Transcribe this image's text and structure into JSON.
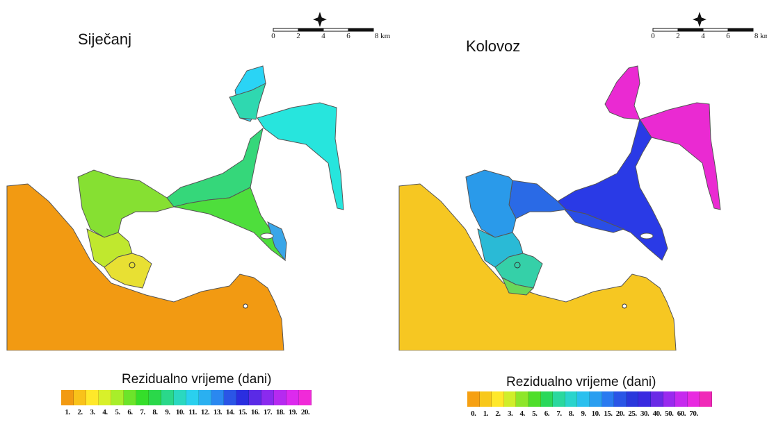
{
  "maps": [
    {
      "id": "left",
      "title": "Siječanj",
      "scale_labels": [
        "0",
        "2",
        "4",
        "6",
        "8 km"
      ],
      "land_color": "#f29a12",
      "zone_colors": [
        "#2ad4f5",
        "#27e5dd",
        "#2fd8b0",
        "#35d77a",
        "#4ede3c",
        "#86e032",
        "#c0e82e",
        "#e8e033",
        "#3aa6e8",
        "#2a8ee0"
      ],
      "legend": {
        "title": "Rezidualno vrijeme (dani)",
        "colors": [
          "#f29a12",
          "#f9c21a",
          "#ffe82a",
          "#d8f02a",
          "#a8ee2a",
          "#6ce42a",
          "#35de2a",
          "#2ad84a",
          "#2ad88a",
          "#2ad8c0",
          "#2ad0ee",
          "#2ab0f0",
          "#2a88f0",
          "#2a55e6",
          "#2a2ee0",
          "#5a2ae6",
          "#8a2aee",
          "#b62af0",
          "#dc2aee",
          "#f02ad8"
        ],
        "labels": [
          "1.",
          "2.",
          "3.",
          "4.",
          "5.",
          "6.",
          "7.",
          "8.",
          "9.",
          "10.",
          "11.",
          "12.",
          "13.",
          "14.",
          "15.",
          "16.",
          "17.",
          "18.",
          "19.",
          "20."
        ]
      }
    },
    {
      "id": "right",
      "title": "Kolovoz",
      "scale_labels": [
        "0",
        "2",
        "4",
        "6",
        "8 km"
      ],
      "land_color": "#f6c722",
      "zone_colors": [
        "#ea2ad2",
        "#ea2ad2",
        "#2a3ae6",
        "#2a4ee6",
        "#2a6ae6",
        "#2a9aea",
        "#2abad6",
        "#35d0a8",
        "#6ad85a",
        "#c0dc3a"
      ],
      "legend": {
        "title": "Rezidualno vrijeme (dani)",
        "colors": [
          "#f6a012",
          "#f8c81a",
          "#ffe82a",
          "#d0ee2a",
          "#8ee62a",
          "#4ede2a",
          "#2ad85a",
          "#2ad89e",
          "#2ad4cc",
          "#2ac0ee",
          "#2a9ef0",
          "#2a7af0",
          "#2a55e6",
          "#2a38dc",
          "#3a2ae0",
          "#6a2ae6",
          "#9a2aee",
          "#c62aee",
          "#e82ae0",
          "#f02ab8"
        ],
        "labels": [
          "0.",
          "1.",
          "2.",
          "3.",
          "4.",
          "5.",
          "6.",
          "7.",
          "8.",
          "9.",
          "10.",
          "15.",
          "20.",
          "25.",
          "30.",
          "40.",
          "50.",
          "60.",
          "70.",
          ""
        ]
      }
    }
  ]
}
